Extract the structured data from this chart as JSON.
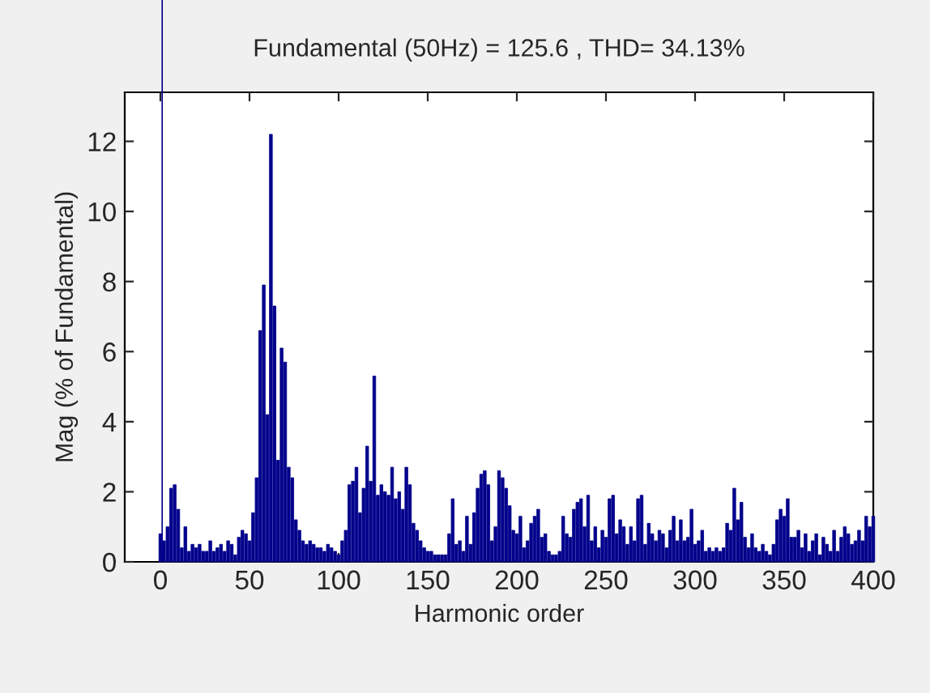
{
  "chart_data": {
    "type": "bar",
    "title": "Fundamental (50Hz) = 125.6 , THD= 34.13%",
    "xlabel": "Harmonic order",
    "ylabel": "Mag (% of Fundamental)",
    "x": [
      0,
      1,
      2,
      4,
      6,
      8,
      10,
      12,
      14,
      16,
      18,
      20,
      22,
      24,
      26,
      28,
      30,
      32,
      34,
      36,
      38,
      40,
      42,
      44,
      46,
      48,
      50,
      52,
      54,
      56,
      58,
      60,
      62,
      64,
      66,
      68,
      70,
      72,
      74,
      76,
      78,
      80,
      82,
      84,
      86,
      88,
      90,
      92,
      94,
      96,
      98,
      100,
      102,
      104,
      106,
      108,
      110,
      112,
      114,
      116,
      118,
      120,
      122,
      124,
      126,
      128,
      130,
      132,
      134,
      136,
      138,
      140,
      142,
      144,
      146,
      148,
      150,
      152,
      154,
      156,
      158,
      160,
      162,
      164,
      166,
      168,
      170,
      172,
      174,
      176,
      178,
      180,
      182,
      184,
      186,
      188,
      190,
      192,
      194,
      196,
      198,
      200,
      202,
      204,
      206,
      208,
      210,
      212,
      214,
      216,
      218,
      220,
      222,
      224,
      226,
      228,
      230,
      232,
      234,
      236,
      238,
      240,
      242,
      244,
      246,
      248,
      250,
      252,
      254,
      256,
      258,
      260,
      262,
      264,
      266,
      268,
      270,
      272,
      274,
      276,
      278,
      280,
      282,
      284,
      286,
      288,
      290,
      292,
      294,
      296,
      298,
      300,
      302,
      304,
      306,
      308,
      310,
      312,
      314,
      316,
      318,
      320,
      322,
      324,
      326,
      328,
      330,
      332,
      334,
      336,
      338,
      340,
      342,
      344,
      346,
      348,
      350,
      352,
      354,
      356,
      358,
      360,
      362,
      364,
      366,
      368,
      370,
      372,
      374,
      376,
      378,
      380,
      382,
      384,
      386,
      388,
      390,
      392,
      394,
      396,
      398,
      400
    ],
    "values": [
      0.8,
      null,
      0.6,
      1.0,
      2.1,
      2.2,
      1.5,
      0.4,
      1.0,
      0.3,
      0.5,
      0.4,
      0.5,
      0.3,
      0.3,
      0.6,
      0.3,
      0.4,
      0.5,
      0.3,
      0.6,
      0.5,
      0.2,
      0.7,
      0.9,
      0.8,
      0.6,
      1.4,
      2.4,
      6.6,
      7.9,
      4.2,
      12.2,
      7.3,
      2.9,
      6.1,
      5.7,
      2.7,
      2.4,
      1.2,
      0.9,
      0.6,
      0.5,
      0.6,
      0.5,
      0.4,
      0.4,
      0.3,
      0.5,
      0.4,
      0.3,
      0.2,
      0.6,
      0.9,
      2.2,
      2.3,
      2.7,
      1.4,
      2.1,
      3.3,
      2.3,
      5.3,
      1.9,
      2.2,
      2.0,
      1.9,
      2.7,
      1.8,
      2.0,
      1.5,
      2.7,
      2.2,
      1.1,
      0.9,
      0.6,
      0.4,
      0.3,
      0.3,
      0.2,
      0.2,
      0.2,
      0.2,
      0.8,
      1.8,
      0.5,
      0.6,
      0.3,
      1.3,
      0.5,
      1.4,
      2.1,
      2.5,
      2.6,
      2.2,
      0.6,
      1.0,
      2.6,
      2.4,
      2.1,
      1.6,
      0.9,
      0.8,
      1.3,
      0.4,
      0.6,
      1.1,
      1.3,
      1.5,
      0.7,
      0.8,
      0.3,
      0.2,
      0.2,
      0.3,
      1.3,
      0.8,
      0.7,
      1.5,
      1.7,
      1.8,
      1.0,
      1.9,
      0.6,
      1.0,
      0.4,
      0.9,
      0.7,
      1.8,
      1.9,
      0.8,
      1.2,
      1.0,
      0.5,
      1.0,
      0.6,
      1.8,
      1.9,
      0.5,
      1.1,
      0.8,
      0.6,
      0.9,
      0.8,
      0.4,
      0.9,
      1.3,
      0.6,
      1.2,
      0.6,
      0.7,
      1.5,
      0.5,
      0.6,
      0.9,
      0.3,
      0.4,
      0.3,
      0.4,
      0.3,
      0.4,
      1.1,
      0.9,
      2.1,
      1.2,
      1.7,
      0.7,
      0.4,
      0.8,
      0.4,
      0.3,
      0.5,
      0.3,
      0.2,
      0.5,
      1.2,
      1.5,
      1.3,
      1.8,
      0.7,
      0.7,
      0.9,
      0.4,
      0.8,
      0.3,
      0.6,
      0.8,
      0.2,
      0.7,
      0.5,
      0.3,
      0.9,
      0.3,
      0.7,
      1.0,
      0.8,
      0.5,
      0.6,
      0.9,
      0.6,
      1.3,
      1.0,
      1.3
    ],
    "color": "#00008b",
    "xlim": [
      -20,
      400
    ],
    "xticks": [
      0,
      50,
      100,
      150,
      200,
      250,
      300,
      350,
      400
    ],
    "ylim": [
      0,
      13.4
    ],
    "yticks": [
      0,
      2,
      4,
      6,
      8,
      10,
      12
    ],
    "ref_lines": [
      {
        "axis": "x",
        "value": 1,
        "color": "#00008b",
        "line_style": "solid"
      }
    ],
    "grid": false,
    "legend": false
  }
}
